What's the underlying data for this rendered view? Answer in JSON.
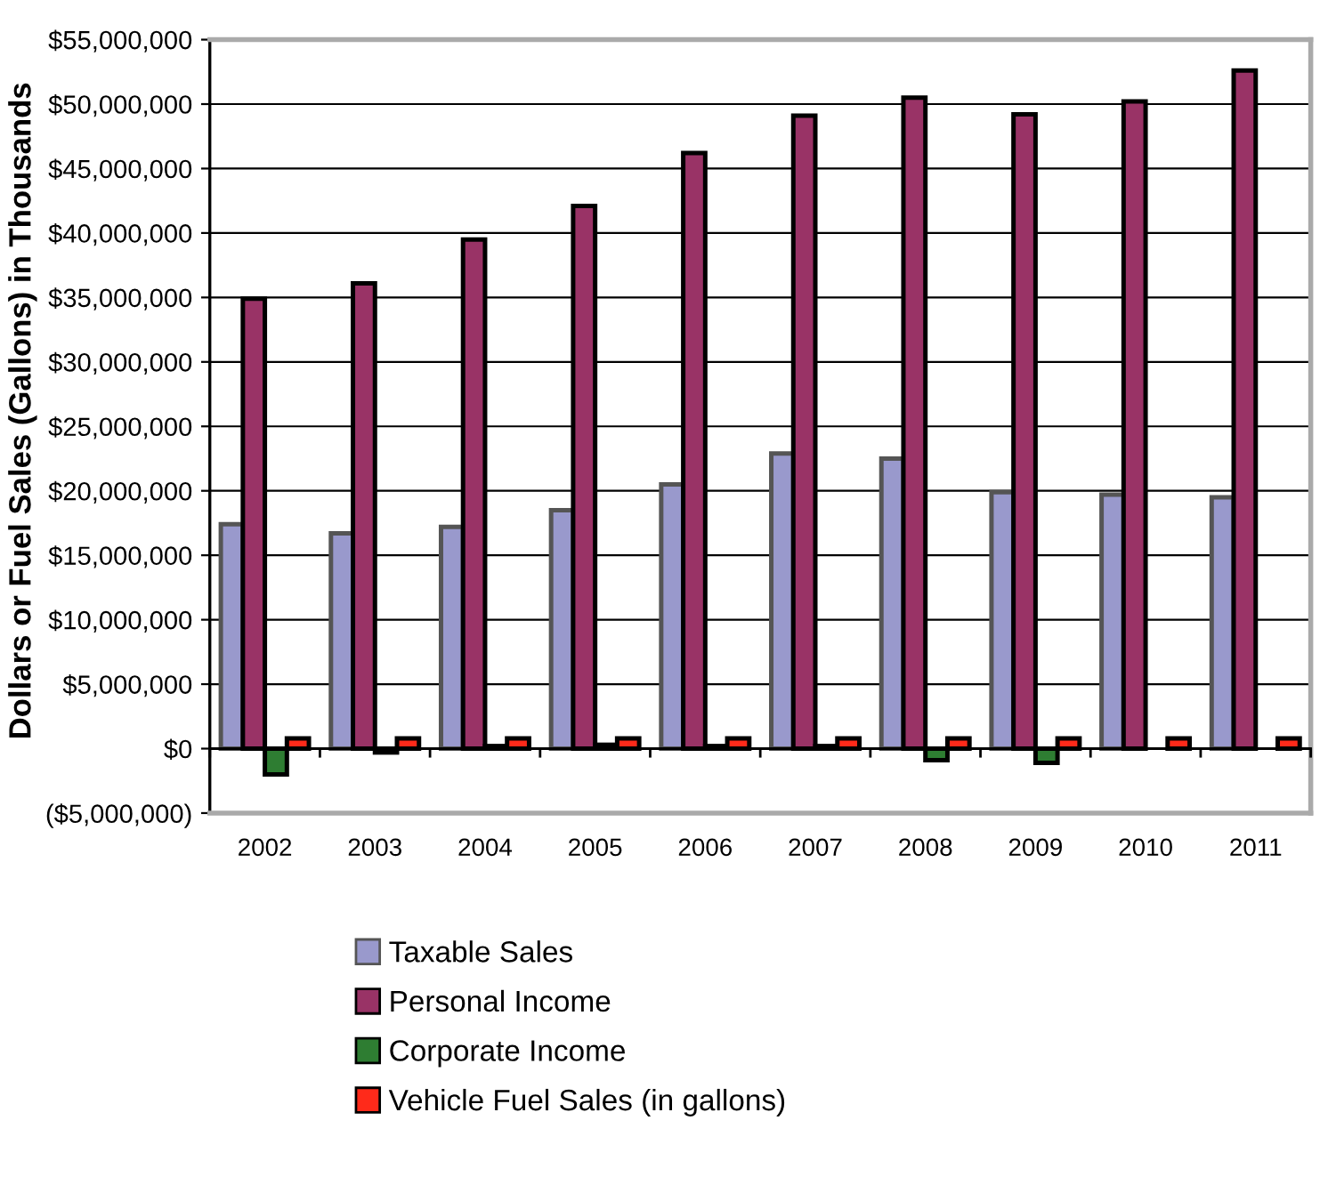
{
  "chart_data": {
    "type": "bar",
    "ylabel": "Dollars or Fuel Sales (Gallons) in Thousands",
    "categories": [
      "2002",
      "2003",
      "2004",
      "2005",
      "2006",
      "2007",
      "2008",
      "2009",
      "2010",
      "2011"
    ],
    "series": [
      {
        "name": "Taxable Sales",
        "color": "#9999cc",
        "values": [
          17400000,
          16700000,
          17200000,
          18500000,
          20500000,
          22900000,
          22500000,
          19900000,
          19700000,
          19500000
        ]
      },
      {
        "name": "Personal Income",
        "color": "#993366",
        "values": [
          34900000,
          36100000,
          39500000,
          42100000,
          46200000,
          49100000,
          50500000,
          49200000,
          50200000,
          52600000
        ]
      },
      {
        "name": "Corporate Income",
        "color": "#2e7d32",
        "values": [
          -2000000,
          -300000,
          200000,
          300000,
          200000,
          200000,
          -900000,
          -1100000,
          null,
          null
        ]
      },
      {
        "name": "Vehicle Fuel Sales (in gallons)",
        "color": "#ff2a1a",
        "values": [
          800000,
          800000,
          800000,
          800000,
          800000,
          800000,
          800000,
          800000,
          800000,
          800000
        ]
      }
    ],
    "ylim": [
      -5000000,
      55000000
    ],
    "yticks": [
      {
        "value": -5000000,
        "label": "($5,000,000)"
      },
      {
        "value": 0,
        "label": "$0"
      },
      {
        "value": 5000000,
        "label": "$5,000,000"
      },
      {
        "value": 10000000,
        "label": "$10,000,000"
      },
      {
        "value": 15000000,
        "label": "$15,000,000"
      },
      {
        "value": 20000000,
        "label": "$20,000,000"
      },
      {
        "value": 25000000,
        "label": "$25,000,000"
      },
      {
        "value": 30000000,
        "label": "$30,000,000"
      },
      {
        "value": 35000000,
        "label": "$35,000,000"
      },
      {
        "value": 40000000,
        "label": "$40,000,000"
      },
      {
        "value": 45000000,
        "label": "$45,000,000"
      },
      {
        "value": 50000000,
        "label": "$50,000,000"
      },
      {
        "value": 55000000,
        "label": "$55,000,000"
      }
    ],
    "grid": "y",
    "legend": "bottom"
  }
}
